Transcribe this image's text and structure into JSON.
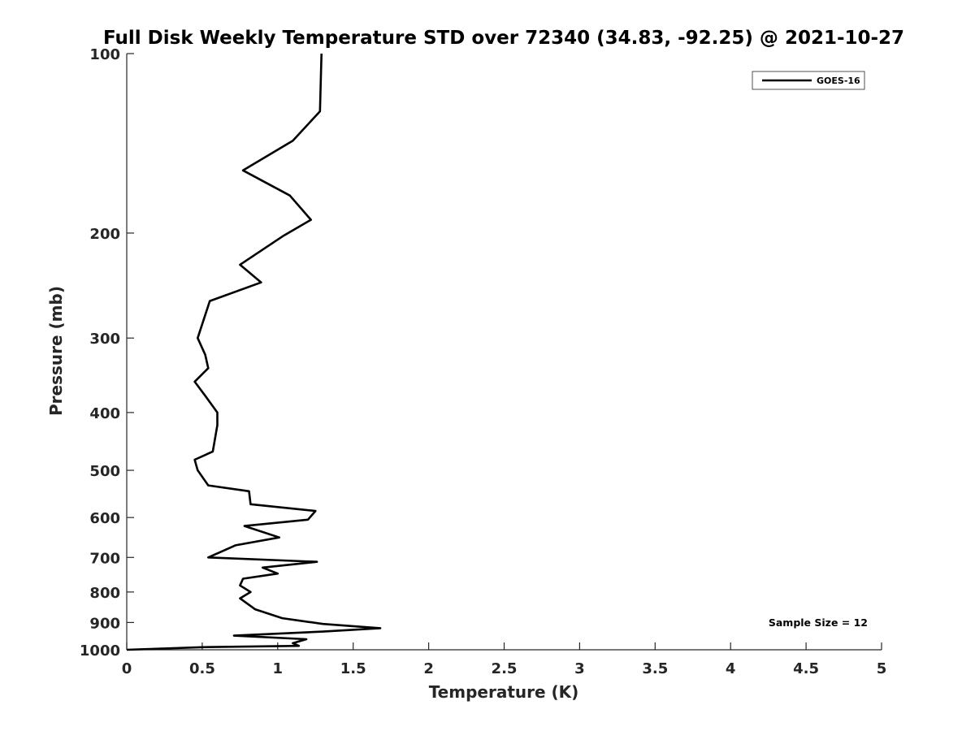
{
  "chart_data": {
    "type": "line",
    "title": "Full Disk Weekly Temperature STD over 72340 (34.83, -92.25) @ 2021-10-27",
    "xlabel": "Temperature (K)",
    "ylabel": "Pressure (mb)",
    "xlim": [
      0,
      5
    ],
    "ylim": [
      1000,
      100
    ],
    "y_scale": "log",
    "y_reversed": true,
    "x_ticks": [
      0,
      0.5,
      1,
      1.5,
      2,
      2.5,
      3,
      3.5,
      4,
      4.5,
      5
    ],
    "x_tick_labels": [
      "0",
      "0.5",
      "1",
      "1.5",
      "2",
      "2.5",
      "3",
      "3.5",
      "4",
      "4.5",
      "5"
    ],
    "y_ticks": [
      100,
      200,
      300,
      400,
      500,
      600,
      700,
      800,
      900,
      1000
    ],
    "y_tick_labels": [
      "100",
      "200",
      "300",
      "400",
      "500",
      "600",
      "700",
      "800",
      "900",
      "1000"
    ],
    "grid": false,
    "legend_position": "top-right",
    "series": [
      {
        "name": "GOES-16",
        "color": "#000000",
        "x": [
          1.29,
          1.28,
          1.1,
          0.77,
          1.08,
          1.22,
          1.04,
          0.75,
          0.89,
          0.55,
          0.47,
          0.52,
          0.54,
          0.45,
          0.52,
          0.6,
          0.6,
          0.57,
          0.45,
          0.47,
          0.54,
          0.81,
          0.82,
          1.25,
          1.2,
          0.78,
          1.01,
          0.72,
          0.54,
          1.26,
          0.9,
          1.0,
          0.77,
          0.75,
          0.82,
          0.75,
          0.85,
          1.03,
          1.3,
          1.68,
          1.3,
          0.71,
          1.19,
          1.1,
          1.14,
          0.5,
          0.0
        ],
        "y": [
          100,
          125,
          140,
          157,
          173,
          190,
          202,
          226,
          242,
          260,
          300,
          320,
          337,
          355,
          375,
          400,
          420,
          465,
          480,
          500,
          530,
          542,
          570,
          585,
          605,
          620,
          648,
          668,
          700,
          712,
          728,
          745,
          760,
          780,
          800,
          820,
          855,
          885,
          905,
          920,
          932,
          947,
          960,
          975,
          985,
          990,
          1000
        ]
      }
    ],
    "legend_entries": [
      "GOES-16"
    ],
    "annotations": [
      "Sample Size = 12"
    ]
  }
}
